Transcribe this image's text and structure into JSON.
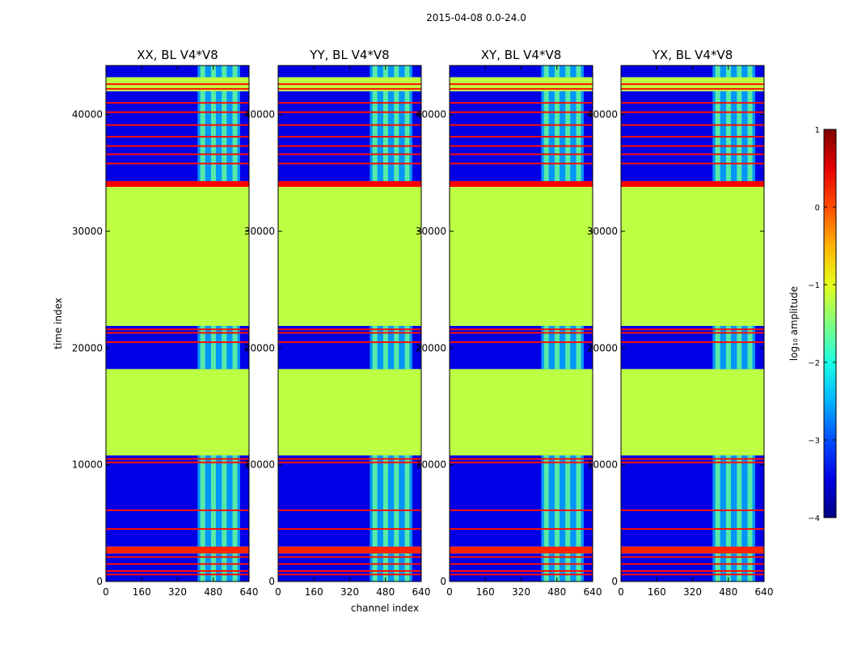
{
  "suptitle": "2015-04-08 0.0-24.0",
  "chart_data": {
    "type": "heatmap",
    "x_range": [
      0,
      640
    ],
    "y_range": [
      0,
      44200
    ],
    "xticks": [
      0,
      160,
      320,
      480,
      640
    ],
    "yticks": [
      0,
      10000,
      20000,
      30000,
      40000
    ],
    "xlabel": "channel index",
    "ylabel": "time index",
    "panels": [
      {
        "title": "XX, BL V4*V8"
      },
      {
        "title": "YY, BL V4*V8"
      },
      {
        "title": "XY, BL V4*V8"
      },
      {
        "title": "YX, BL V4*V8"
      }
    ],
    "blocks": [
      {
        "t0": 0,
        "t1": 2400,
        "level": -3.5
      },
      {
        "t0": 2400,
        "t1": 3000,
        "level": 0.2
      },
      {
        "t0": 3000,
        "t1": 10800,
        "level": -3.5
      },
      {
        "t0": 10800,
        "t1": 18200,
        "level": -1.2
      },
      {
        "t0": 18200,
        "t1": 21900,
        "level": -3.5
      },
      {
        "t0": 21900,
        "t1": 33800,
        "level": -1.2
      },
      {
        "t0": 33800,
        "t1": 34300,
        "level": 0.4
      },
      {
        "t0": 34300,
        "t1": 42000,
        "level": -3.5
      },
      {
        "t0": 42000,
        "t1": 43200,
        "level": -1.2
      },
      {
        "t0": 43200,
        "t1": 44200,
        "level": -3.5
      }
    ],
    "flag_lines_t": [
      600,
      900,
      1500,
      2100,
      4500,
      6100,
      10200,
      10500,
      20500,
      21300,
      21600,
      35800,
      36600,
      37300,
      38100,
      39100,
      40200,
      41000,
      42200,
      42600
    ],
    "rfi_channel_band": [
      410,
      600
    ],
    "colorbar": {
      "label": "log₁₀ amplitude",
      "vmin": -4,
      "vmax": 1,
      "ticks": [
        1,
        0,
        -1,
        -2,
        -3,
        -4
      ],
      "tick_labels": [
        "1",
        "0",
        "−1",
        "−2",
        "−3",
        "−4"
      ],
      "colormap": "jet"
    }
  }
}
